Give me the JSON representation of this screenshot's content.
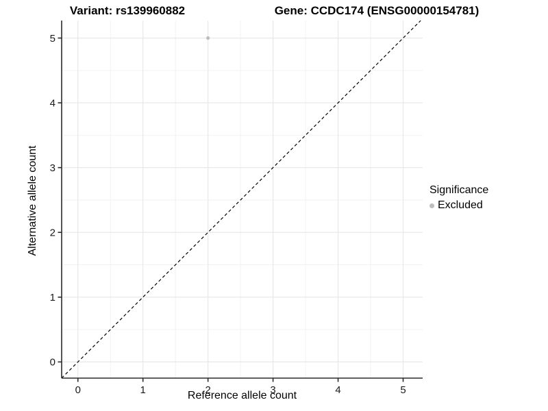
{
  "titles": {
    "variant": "Variant: rs139960882",
    "gene": "Gene: CCDC174 (ENSG00000154781)"
  },
  "legend": {
    "title": "Significance",
    "items": [
      {
        "label": "Excluded",
        "color": "#bdbdbd"
      }
    ]
  },
  "colors": {
    "background": "#ffffff",
    "grid_major": "#e6e6e6",
    "grid_minor": "#f2f2f2",
    "axis": "#2b2b2b",
    "text": "#1a1a1a",
    "point": "#bdbdbd",
    "reference_line": "#000000"
  },
  "chart_data": {
    "type": "scatter",
    "title": "Variant: rs139960882 — Gene: CCDC174 (ENSG00000154781)",
    "xlabel": "Reference allele count",
    "ylabel": "Alternative allele count",
    "xlim": [
      -0.25,
      5.3
    ],
    "ylim": [
      -0.25,
      5.27
    ],
    "xticks": [
      0,
      1,
      2,
      3,
      4,
      5
    ],
    "yticks": [
      0,
      1,
      2,
      3,
      4,
      5
    ],
    "x_minor": [
      0.5,
      1.5,
      2.5,
      3.5,
      4.5
    ],
    "y_minor": [
      0.5,
      1.5,
      2.5,
      3.5,
      4.5
    ],
    "grid": "major+minor",
    "legend_position": "right",
    "series": [
      {
        "name": "Excluded",
        "color": "#bdbdbd",
        "points": [
          {
            "x": 2,
            "y": 5
          }
        ]
      }
    ],
    "reference_line": {
      "type": "identity y=x",
      "style": "dashed",
      "color": "#000000"
    }
  }
}
